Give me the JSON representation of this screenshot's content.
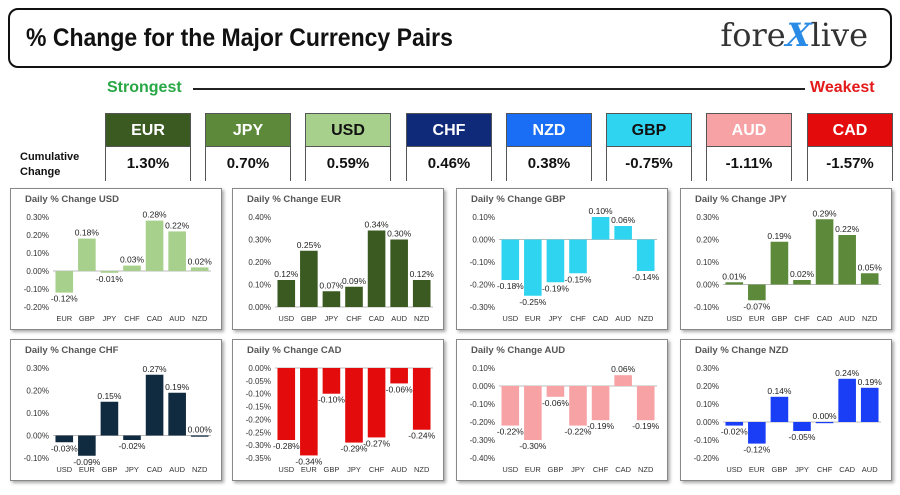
{
  "header": {
    "title": "% Change for the Major Currency Pairs",
    "logo_left": "fore",
    "logo_mid": "X",
    "logo_right": "live"
  },
  "strength": {
    "strongest": "Strongest",
    "weakest": "Weakest",
    "cumulative_label_1": "Cumulative",
    "cumulative_label_2": "Change"
  },
  "currencies": [
    {
      "code": "EUR",
      "value": "1.30%",
      "bg": "#3a5a22",
      "fg": "#ffffff"
    },
    {
      "code": "JPY",
      "value": "0.70%",
      "bg": "#5c8a3a",
      "fg": "#ffffff"
    },
    {
      "code": "USD",
      "value": "0.59%",
      "bg": "#a8d08d",
      "fg": "#111111"
    },
    {
      "code": "CHF",
      "value": "0.46%",
      "bg": "#102a7a",
      "fg": "#ffffff"
    },
    {
      "code": "NZD",
      "value": "0.38%",
      "bg": "#1a6ef5",
      "fg": "#ffffff"
    },
    {
      "code": "GBP",
      "value": "-0.75%",
      "bg": "#2fd5f0",
      "fg": "#111111"
    },
    {
      "code": "AUD",
      "value": "-1.11%",
      "bg": "#f7a3a6",
      "fg": "#ffffff"
    },
    {
      "code": "CAD",
      "value": "-1.57%",
      "bg": "#e30b0b",
      "fg": "#ffffff"
    }
  ],
  "chart_data": [
    {
      "type": "bar",
      "title": "Daily % Change USD",
      "categories": [
        "EUR",
        "GBP",
        "JPY",
        "CHF",
        "CAD",
        "AUD",
        "NZD"
      ],
      "values": [
        -0.12,
        0.18,
        -0.01,
        0.03,
        0.28,
        0.22,
        0.02
      ],
      "labels": [
        "-0.12%",
        "0.18%",
        "-0.01%",
        "0.03%",
        "0.28%",
        "0.22%",
        "0.02%"
      ],
      "yticks": [
        "0.30%",
        "0.20%",
        "0.10%",
        "0.00%",
        "-0.10%",
        "-0.20%"
      ],
      "ylim": [
        -0.2,
        0.3
      ],
      "colors": [
        "#a8d08d"
      ]
    },
    {
      "type": "bar",
      "title": "Daily % Change EUR",
      "categories": [
        "USD",
        "GBP",
        "JPY",
        "CHF",
        "CAD",
        "AUD",
        "NZD"
      ],
      "values": [
        0.12,
        0.25,
        0.07,
        0.09,
        0.34,
        0.3,
        0.12
      ],
      "labels": [
        "0.12%",
        "0.25%",
        "0.07%",
        "0.09%",
        "0.34%",
        "0.30%",
        "0.12%"
      ],
      "yticks": [
        "0.40%",
        "0.30%",
        "0.20%",
        "0.10%",
        "0.00%"
      ],
      "ylim": [
        0,
        0.4
      ],
      "colors": [
        "#3a5a22"
      ]
    },
    {
      "type": "bar",
      "title": "Daily % Change GBP",
      "categories": [
        "USD",
        "EUR",
        "JPY",
        "CHF",
        "CAD",
        "AUD",
        "NZD"
      ],
      "values": [
        -0.18,
        -0.25,
        -0.19,
        -0.15,
        0.1,
        0.06,
        -0.14
      ],
      "labels": [
        "-0.18%",
        "-0.25%",
        "-0.19%",
        "-0.15%",
        "0.10%",
        "0.06%",
        "-0.14%"
      ],
      "yticks": [
        "0.10%",
        "0.00%",
        "-0.10%",
        "-0.20%",
        "-0.30%"
      ],
      "ylim": [
        -0.3,
        0.1
      ],
      "colors": [
        "#2fd5f0"
      ]
    },
    {
      "type": "bar",
      "title": "Daily % Change JPY",
      "categories": [
        "USD",
        "EUR",
        "GBP",
        "CHF",
        "CAD",
        "AUD",
        "NZD"
      ],
      "values": [
        0.01,
        -0.07,
        0.19,
        0.02,
        0.29,
        0.22,
        0.05
      ],
      "labels": [
        "0.01%",
        "-0.07%",
        "0.19%",
        "0.02%",
        "0.29%",
        "0.22%",
        "0.05%"
      ],
      "yticks": [
        "0.30%",
        "0.20%",
        "0.10%",
        "0.00%",
        "-0.10%"
      ],
      "ylim": [
        -0.1,
        0.3
      ],
      "colors": [
        "#5c8a3a"
      ]
    },
    {
      "type": "bar",
      "title": "Daily % Change CHF",
      "categories": [
        "USD",
        "EUR",
        "GBP",
        "JPY",
        "CAD",
        "AUD",
        "NZD"
      ],
      "values": [
        -0.03,
        -0.09,
        0.15,
        -0.02,
        0.27,
        0.19,
        0.0
      ],
      "labels": [
        "-0.03%",
        "-0.09%",
        "0.15%",
        "-0.02%",
        "0.27%",
        "0.19%",
        "0.00%"
      ],
      "yticks": [
        "0.30%",
        "0.20%",
        "0.10%",
        "0.00%",
        "-0.10%"
      ],
      "ylim": [
        -0.1,
        0.3
      ],
      "colors": [
        "#102a3f"
      ]
    },
    {
      "type": "bar",
      "title": "Daily % Change CAD",
      "categories": [
        "USD",
        "EUR",
        "GBP",
        "JPY",
        "CHF",
        "AUD",
        "NZD"
      ],
      "values": [
        -0.28,
        -0.34,
        -0.1,
        -0.29,
        -0.27,
        -0.06,
        -0.24
      ],
      "labels": [
        "-0.28%",
        "-0.34%",
        "-0.10%",
        "-0.29%",
        "-0.27%",
        "-0.06%",
        "-0.24%"
      ],
      "yticks": [
        "0.00%",
        "-0.05%",
        "-0.10%",
        "-0.15%",
        "-0.20%",
        "-0.25%",
        "-0.30%",
        "-0.35%"
      ],
      "ylim": [
        -0.35,
        0
      ],
      "colors": [
        "#e30b0b"
      ]
    },
    {
      "type": "bar",
      "title": "Daily % Change AUD",
      "categories": [
        "USD",
        "EUR",
        "GBP",
        "JPY",
        "CHF",
        "CAD",
        "NZD"
      ],
      "values": [
        -0.22,
        -0.3,
        -0.06,
        -0.22,
        -0.19,
        0.06,
        -0.19
      ],
      "labels": [
        "-0.22%",
        "-0.30%",
        "-0.06%",
        "-0.22%",
        "-0.19%",
        "0.06%",
        "-0.19%"
      ],
      "yticks": [
        "0.10%",
        "0.00%",
        "-0.10%",
        "-0.20%",
        "-0.30%",
        "-0.40%"
      ],
      "ylim": [
        -0.4,
        0.1
      ],
      "colors": [
        "#f7a3a6"
      ]
    },
    {
      "type": "bar",
      "title": "Daily % Change NZD",
      "categories": [
        "USD",
        "EUR",
        "GBP",
        "JPY",
        "CHF",
        "CAD",
        "AUD"
      ],
      "values": [
        -0.02,
        -0.12,
        0.14,
        -0.05,
        0.0,
        0.24,
        0.19
      ],
      "labels": [
        "-0.02%",
        "-0.12%",
        "0.14%",
        "-0.05%",
        "0.00%",
        "0.24%",
        "0.19%"
      ],
      "yticks": [
        "0.30%",
        "0.20%",
        "0.10%",
        "0.00%",
        "-0.10%",
        "-0.20%"
      ],
      "ylim": [
        -0.2,
        0.3
      ],
      "colors": [
        "#1a3ef5"
      ]
    }
  ]
}
